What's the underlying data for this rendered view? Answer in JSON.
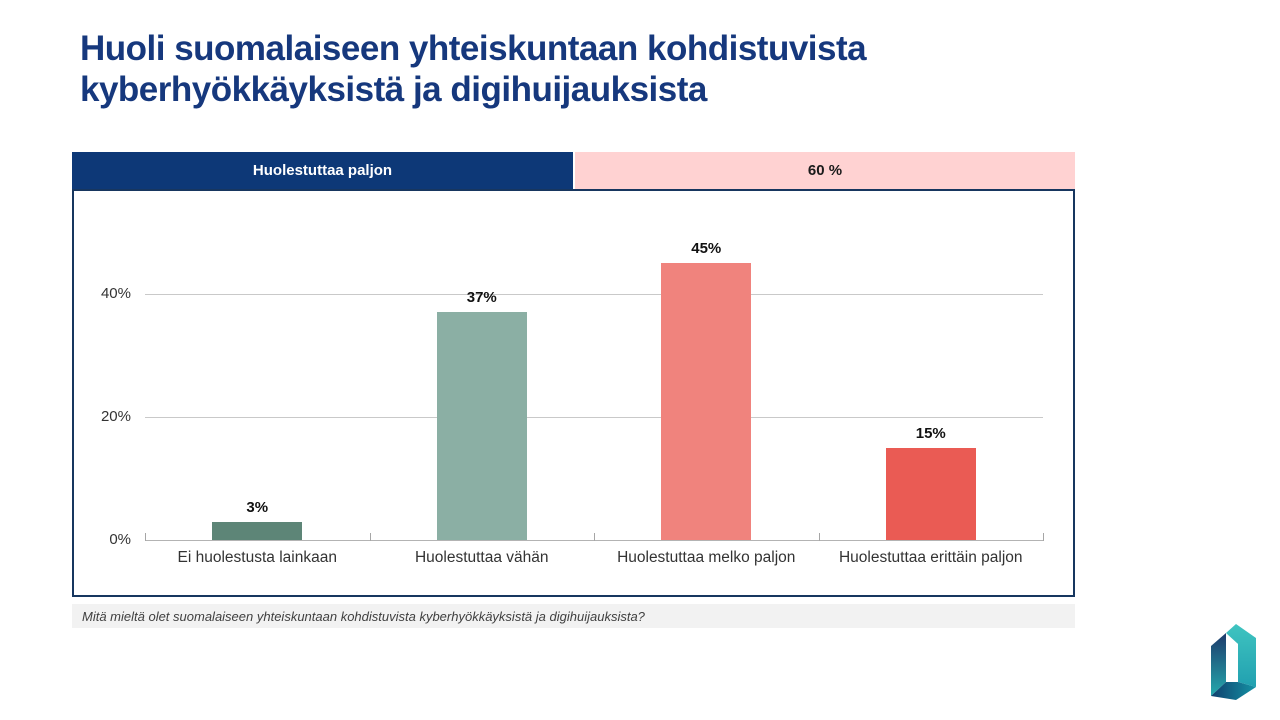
{
  "page": {
    "title_lines": [
      "Huoli suomalaiseen yhteiskuntaan kohdistuvista",
      "kyberhyökkäyksistä ja digihuijauksista"
    ],
    "title_color": "#16387d",
    "background": "#ffffff"
  },
  "summary_bar": {
    "label": "Huolestuttaa paljon",
    "value": "60 %",
    "label_bg": "#0d3877",
    "label_color": "#ffffff",
    "value_bg": "#ffd2d2",
    "value_color": "#1a1a1a"
  },
  "chart_data": {
    "type": "bar",
    "title": "",
    "xlabel": "",
    "ylabel": "",
    "categories": [
      "Ei huolestusta lainkaan",
      "Huolestuttaa vähän",
      "Huolestuttaa melko paljon",
      "Huolestuttaa erittäin paljon"
    ],
    "values": [
      3,
      37,
      45,
      15
    ],
    "value_labels": [
      "3%",
      "37%",
      "45%",
      "15%"
    ],
    "bar_colors": [
      "#5d8577",
      "#8bafa4",
      "#f0837d",
      "#ea5b54"
    ],
    "yticks": [
      0,
      20,
      40
    ],
    "ytick_labels": [
      "0%",
      "20%",
      "40%"
    ],
    "ylim": [
      0,
      50
    ],
    "grid": true,
    "legend": false
  },
  "footer": {
    "question": "Mitä mieltä olet suomalaiseen yhteiskuntaan kohdistuvista kyberhyökkäyksistä ja digihuijauksista?"
  },
  "logo": {
    "name": "geometric-d-logo",
    "colors": {
      "teal": "#2fb8b6",
      "navy": "#1d3a6b",
      "dark": "#10517c"
    }
  }
}
